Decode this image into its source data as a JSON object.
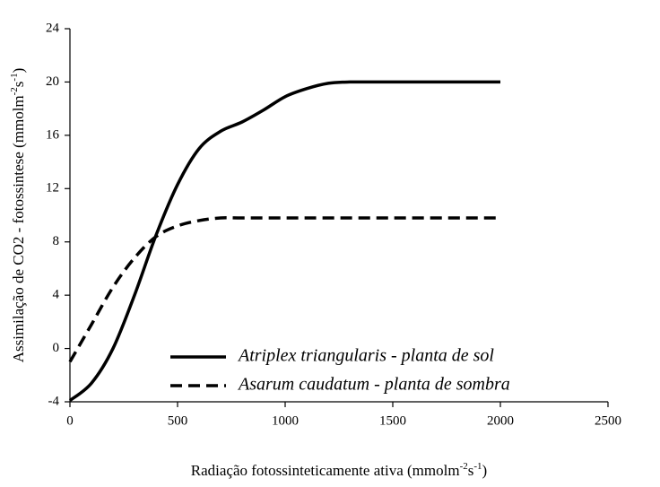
{
  "chart_data": {
    "type": "line",
    "xlabel": [
      "Radiação fotossinteticamente ativa (mmolm",
      "-2",
      "s",
      "-1",
      ")"
    ],
    "ylabel": [
      "Assimilação de CO2 - fotossintese (mmolm",
      "-2",
      "s",
      "-1",
      ")"
    ],
    "xlim": [
      0,
      2500
    ],
    "xticks": [
      0,
      500,
      1000,
      1500,
      2000,
      2500
    ],
    "ylim": [
      -4,
      24
    ],
    "yticks": [
      -4,
      0,
      4,
      8,
      12,
      16,
      20,
      24
    ],
    "legend": "lower right",
    "series": [
      {
        "name": "Atriplex triangularis - planta de sol",
        "color": "#000000",
        "dash": "solid",
        "x": [
          0,
          100,
          200,
          300,
          400,
          500,
          600,
          700,
          800,
          900,
          1000,
          1100,
          1200,
          1300,
          1500,
          2000
        ],
        "values": [
          -3.9,
          -2.6,
          0,
          4,
          8.5,
          12.3,
          15,
          16.3,
          17,
          17.9,
          18.9,
          19.5,
          19.9,
          20,
          20,
          20
        ]
      },
      {
        "name": "Asarum caudatum - planta de sombra",
        "color": "#000000",
        "dash": "dashed",
        "x": [
          0,
          100,
          200,
          300,
          400,
          500,
          600,
          700,
          800,
          1000,
          1500,
          2000
        ],
        "values": [
          -1,
          1.8,
          4.6,
          6.8,
          8.4,
          9.2,
          9.6,
          9.8,
          9.8,
          9.8,
          9.8,
          9.8
        ]
      }
    ]
  }
}
